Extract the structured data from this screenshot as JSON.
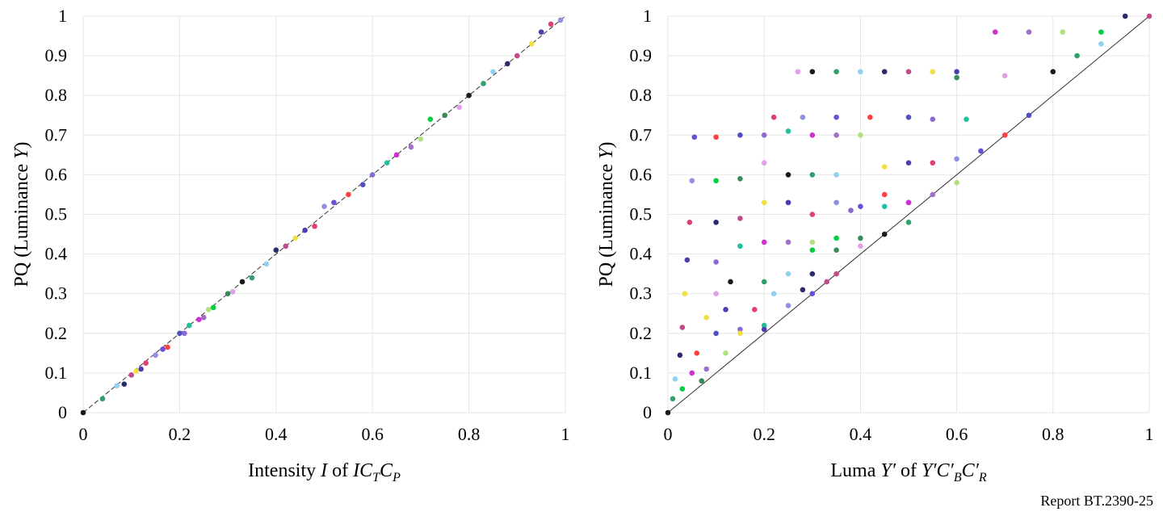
{
  "report_label": "Report BT.2390-25",
  "chart_data": [
    {
      "type": "scatter",
      "id": "ictcp",
      "xlim": [
        0,
        1
      ],
      "ylim": [
        0,
        1
      ],
      "xticks": [
        "0",
        "0.2",
        "0.4",
        "0.6",
        "0.8",
        "1"
      ],
      "yticks": [
        "0",
        "0.1",
        "0.2",
        "0.3",
        "0.4",
        "0.5",
        "0.6",
        "0.7",
        "0.8",
        "0.9",
        "1"
      ],
      "xlabel": {
        "prefix": "Intensity ",
        "var": "I",
        "mid": " of ",
        "name": "IC",
        "sub1": "T",
        "name2": "C",
        "sub2": "P"
      },
      "ylabel": {
        "prefix": "PQ (Luminance ",
        "var": "Y",
        "suffix": ")"
      },
      "grid": true,
      "reference_line": "diagonal dashed",
      "points": [
        [
          0,
          0
        ],
        [
          0.04,
          0.035
        ],
        [
          0.07,
          0.068
        ],
        [
          0.085,
          0.072
        ],
        [
          0.1,
          0.095
        ],
        [
          0.11,
          0.105
        ],
        [
          0.12,
          0.11
        ],
        [
          0.13,
          0.125
        ],
        [
          0.15,
          0.145
        ],
        [
          0.165,
          0.16
        ],
        [
          0.175,
          0.165
        ],
        [
          0.2,
          0.2
        ],
        [
          0.21,
          0.2
        ],
        [
          0.22,
          0.22
        ],
        [
          0.24,
          0.235
        ],
        [
          0.25,
          0.24
        ],
        [
          0.26,
          0.26
        ],
        [
          0.27,
          0.265
        ],
        [
          0.3,
          0.3
        ],
        [
          0.31,
          0.305
        ],
        [
          0.33,
          0.33
        ],
        [
          0.35,
          0.34
        ],
        [
          0.38,
          0.375
        ],
        [
          0.4,
          0.41
        ],
        [
          0.42,
          0.42
        ],
        [
          0.44,
          0.44
        ],
        [
          0.46,
          0.46
        ],
        [
          0.48,
          0.47
        ],
        [
          0.5,
          0.52
        ],
        [
          0.52,
          0.53
        ],
        [
          0.55,
          0.55
        ],
        [
          0.58,
          0.575
        ],
        [
          0.6,
          0.6
        ],
        [
          0.63,
          0.63
        ],
        [
          0.65,
          0.65
        ],
        [
          0.68,
          0.67
        ],
        [
          0.7,
          0.69
        ],
        [
          0.72,
          0.74
        ],
        [
          0.75,
          0.75
        ],
        [
          0.78,
          0.77
        ],
        [
          0.8,
          0.8
        ],
        [
          0.83,
          0.83
        ],
        [
          0.85,
          0.86
        ],
        [
          0.88,
          0.88
        ],
        [
          0.9,
          0.9
        ],
        [
          0.93,
          0.93
        ],
        [
          0.95,
          0.96
        ],
        [
          0.97,
          0.98
        ],
        [
          0.99,
          0.99
        ]
      ]
    },
    {
      "type": "scatter",
      "id": "ycbcr",
      "xlim": [
        0,
        1
      ],
      "ylim": [
        0,
        1
      ],
      "xticks": [
        "0",
        "0.2",
        "0.4",
        "0.6",
        "0.8",
        "1"
      ],
      "yticks": [
        "0",
        "0.1",
        "0.2",
        "0.3",
        "0.4",
        "0.5",
        "0.6",
        "0.7",
        "0.8",
        "0.9",
        "1"
      ],
      "xlabel": {
        "prefix": "Luma ",
        "var": "Y′",
        "mid": " of ",
        "name": "Y′C′",
        "sub1": "B",
        "name2": "C′",
        "sub2": "R"
      },
      "ylabel": {
        "prefix": "PQ (Luminance ",
        "var": "Y",
        "suffix": ")"
      },
      "grid": true,
      "reference_line": "diagonal solid",
      "points": [
        [
          0,
          0
        ],
        [
          0.01,
          0.035
        ],
        [
          0.015,
          0.085
        ],
        [
          0.025,
          0.145
        ],
        [
          0.03,
          0.215
        ],
        [
          0.035,
          0.3
        ],
        [
          0.04,
          0.385
        ],
        [
          0.045,
          0.48
        ],
        [
          0.05,
          0.585
        ],
        [
          0.055,
          0.695
        ],
        [
          0.1,
          0.695
        ],
        [
          0.15,
          0.7
        ],
        [
          0.2,
          0.7
        ],
        [
          0.25,
          0.71
        ],
        [
          0.3,
          0.7
        ],
        [
          0.35,
          0.7
        ],
        [
          0.4,
          0.7
        ],
        [
          0.1,
          0.585
        ],
        [
          0.15,
          0.59
        ],
        [
          0.2,
          0.63
        ],
        [
          0.25,
          0.6
        ],
        [
          0.3,
          0.6
        ],
        [
          0.35,
          0.6
        ],
        [
          0.1,
          0.48
        ],
        [
          0.15,
          0.49
        ],
        [
          0.2,
          0.53
        ],
        [
          0.25,
          0.53
        ],
        [
          0.3,
          0.5
        ],
        [
          0.35,
          0.53
        ],
        [
          0.4,
          0.52
        ],
        [
          0.45,
          0.55
        ],
        [
          0.5,
          0.53
        ],
        [
          0.1,
          0.38
        ],
        [
          0.15,
          0.42
        ],
        [
          0.2,
          0.43
        ],
        [
          0.25,
          0.43
        ],
        [
          0.3,
          0.43
        ],
        [
          0.35,
          0.44
        ],
        [
          0.4,
          0.44
        ],
        [
          0.1,
          0.3
        ],
        [
          0.13,
          0.33
        ],
        [
          0.2,
          0.33
        ],
        [
          0.25,
          0.35
        ],
        [
          0.3,
          0.35
        ],
        [
          0.35,
          0.35
        ],
        [
          0.08,
          0.24
        ],
        [
          0.12,
          0.26
        ],
        [
          0.18,
          0.26
        ],
        [
          0.25,
          0.27
        ],
        [
          0.3,
          0.3
        ],
        [
          0.06,
          0.15
        ],
        [
          0.1,
          0.2
        ],
        [
          0.15,
          0.21
        ],
        [
          0.2,
          0.22
        ],
        [
          0.05,
          0.1
        ],
        [
          0.08,
          0.11
        ],
        [
          0.12,
          0.15
        ],
        [
          0.03,
          0.06
        ],
        [
          0.07,
          0.08
        ],
        [
          0.27,
          0.86
        ],
        [
          0.3,
          0.86
        ],
        [
          0.35,
          0.86
        ],
        [
          0.4,
          0.86
        ],
        [
          0.45,
          0.86
        ],
        [
          0.5,
          0.86
        ],
        [
          0.55,
          0.86
        ],
        [
          0.6,
          0.86
        ],
        [
          0.22,
          0.745
        ],
        [
          0.28,
          0.745
        ],
        [
          0.35,
          0.745
        ],
        [
          0.42,
          0.745
        ],
        [
          0.5,
          0.745
        ],
        [
          0.55,
          0.74
        ],
        [
          0.62,
          0.74
        ],
        [
          0.68,
          0.96
        ],
        [
          0.75,
          0.96
        ],
        [
          0.82,
          0.96
        ],
        [
          0.9,
          0.96
        ],
        [
          0.6,
          0.845
        ],
        [
          0.7,
          0.85
        ],
        [
          0.8,
          0.86
        ],
        [
          0.85,
          0.9
        ],
        [
          0.9,
          0.93
        ],
        [
          0.95,
          1.0
        ],
        [
          1.0,
          1.0
        ],
        [
          0.45,
          0.62
        ],
        [
          0.5,
          0.63
        ],
        [
          0.55,
          0.63
        ],
        [
          0.6,
          0.64
        ],
        [
          0.65,
          0.66
        ],
        [
          0.7,
          0.7
        ],
        [
          0.75,
          0.75
        ],
        [
          0.38,
          0.51
        ],
        [
          0.45,
          0.52
        ],
        [
          0.5,
          0.53
        ],
        [
          0.55,
          0.55
        ],
        [
          0.6,
          0.58
        ],
        [
          0.3,
          0.41
        ],
        [
          0.35,
          0.41
        ],
        [
          0.4,
          0.42
        ],
        [
          0.45,
          0.45
        ],
        [
          0.5,
          0.48
        ],
        [
          0.22,
          0.3
        ],
        [
          0.28,
          0.31
        ],
        [
          0.33,
          0.33
        ],
        [
          0.15,
          0.2
        ],
        [
          0.2,
          0.21
        ]
      ]
    }
  ]
}
